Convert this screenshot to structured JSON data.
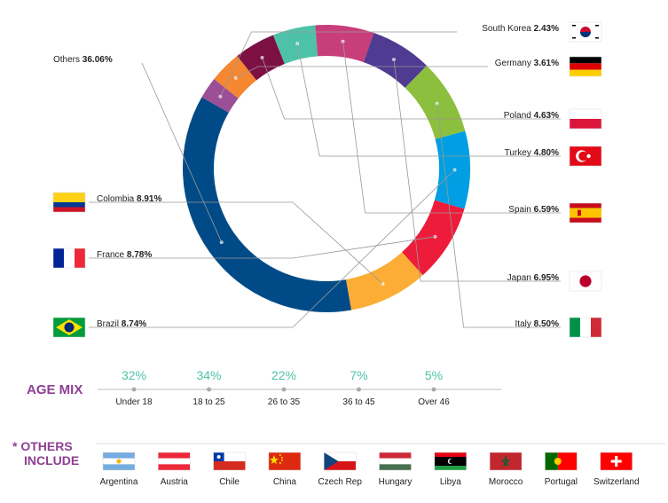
{
  "chart_data": {
    "type": "pie",
    "variant": "donut",
    "title": "",
    "slices": [
      {
        "label": "Others",
        "value": 36.06,
        "color": "#004b87"
      },
      {
        "label": "South Korea",
        "value": 2.43,
        "color": "#9b4f96"
      },
      {
        "label": "Germany",
        "value": 3.61,
        "color": "#f58731"
      },
      {
        "label": "Poland",
        "value": 4.63,
        "color": "#7d1043"
      },
      {
        "label": "Turkey",
        "value": 4.8,
        "color": "#4ec2a8"
      },
      {
        "label": "Spain",
        "value": 6.59,
        "color": "#c83e7a"
      },
      {
        "label": "Japan",
        "value": 6.95,
        "color": "#4f3b91"
      },
      {
        "label": "Italy",
        "value": 8.5,
        "color": "#8dbf3f"
      },
      {
        "label": "Brazil",
        "value": 8.74,
        "color": "#009fe3"
      },
      {
        "label": "France",
        "value": 8.78,
        "color": "#ee1c3b"
      },
      {
        "label": "Colombia",
        "value": 8.91,
        "color": "#fbad35"
      }
    ],
    "slice_pct_labels": [
      "36.06%",
      "2.43%",
      "3.61%",
      "4.63%",
      "4.80%",
      "6.59%",
      "6.95%",
      "8.50%",
      "8.74%",
      "8.78%",
      "8.91%"
    ]
  },
  "age_mix": {
    "title": "AGE MIX",
    "items": [
      {
        "pct": "32%",
        "label": "Under 18"
      },
      {
        "pct": "34%",
        "label": "18 to 25"
      },
      {
        "pct": "22%",
        "label": "26 to 35"
      },
      {
        "pct": "7%",
        "label": "36 to 45"
      },
      {
        "pct": "5%",
        "label": "Over 46"
      }
    ]
  },
  "others_include": {
    "title_line1": "* OTHERS",
    "title_line2": "INCLUDE",
    "countries": [
      "Argentina",
      "Austria",
      "Chile",
      "China",
      "Czech Rep",
      "Hungary",
      "Libya",
      "Morocco",
      "Portugal",
      "Switzerland"
    ]
  },
  "colors": {
    "accent": "#8e3f93",
    "teal": "#4ec2a8",
    "leader": "#999999"
  }
}
